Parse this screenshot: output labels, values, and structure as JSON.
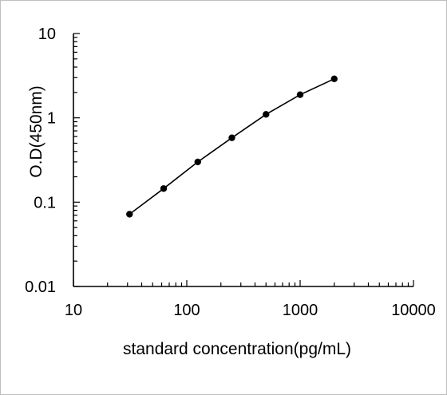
{
  "chart_data": {
    "type": "line",
    "title": "",
    "xlabel": "standard concentration(pg/mL)",
    "ylabel": "O.D(450nm)",
    "xscale": "log",
    "yscale": "log",
    "xlim": [
      10,
      10000
    ],
    "ylim": [
      0.01,
      10
    ],
    "x_ticks": [
      "10",
      "100",
      "1000",
      "10000"
    ],
    "y_ticks": [
      "0.01",
      "0.1",
      "1",
      "10"
    ],
    "grid": false,
    "legend": "none",
    "line_color": "#000000",
    "series": [
      {
        "x": [
          31.25,
          62.5,
          125,
          250,
          500,
          1000,
          2000
        ],
        "y": [
          0.072,
          0.145,
          0.3,
          0.58,
          1.1,
          1.88,
          2.9
        ]
      }
    ]
  }
}
